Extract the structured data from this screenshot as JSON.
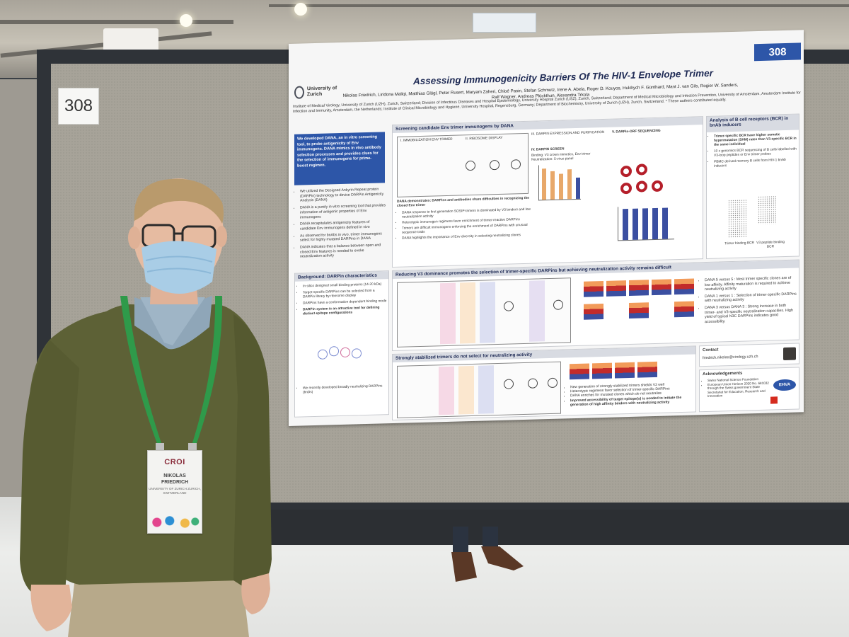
{
  "scene": {
    "board_number": "308",
    "colors": {
      "board": "#a7a399",
      "poster_accent": "#2d56a8",
      "sweater": "#5b5f35",
      "lanyard": "#2f9a4a"
    }
  },
  "poster": {
    "number": "308",
    "logo_text": "University of Zurich",
    "title": "Assessing Immunogenicity Barriers Of The HIV-1 Envelope Trimer",
    "authors": "Nikolas Friedrich, Liridona Maliqi, Matthias Glögl, Peter Rusert, Maryam Zaheri, Chloé Pasin, Stefan Schmutz, Irene A. Abela, Roger D. Kouyos, Huldrych F. Günthard, Mant J. van Gils, Rogier W. Sanders, Ralf Wagner, Andreas Plückthun, Alexandra Trkola",
    "affiliations": "Institute of Medical Virology, University of Zurich (UZH), Zurich, Switzerland; Division of Infectious Diseases and Hospital Epidemiology, University Hospital Zurich (USZ), Zurich, Switzerland; Department of Medical Microbiology and Infection Prevention, University of Amsterdam, Amsterdam Institute for Infection and Immunity, Amsterdam, the Netherlands; Institute of Clinical Microbiology and Hygiene, University Hospital, Regensburg, Germany; Department of Biochemistry, University of Zurich (UZH), Zurich, Switzerland. * These authors contributed equally.",
    "summary": "We developed DANA, an in vitro screening tool, to probe antigenicity of Env immunogens. DANA mimics in vivo antibody selection processes and provides clues for the selection of immunogens for prime-boost regimen.",
    "intro_bullets": [
      "We utilized the Designed Ankyrin Repeat protein (DARPin) technology to devise DARPin Antigenicity Analysis (DANA)",
      "DANA is a purely in-vitro screening tool that provides information of antigenic properties of Env immunogens",
      "DANA recapitulates antigenicity features of candidate Env immunogens defined in vivo",
      "As observed for bnAbs in vivo, trimer immunogens select for highly mutated DARPins in DANA",
      "DANA indicates that a balance between open and closed Env features is needed to evoke neutralization activity"
    ],
    "section_background": "Background: DARPin characteristics",
    "background_bullets": [
      "In silico designed small binding proteins (14-20 kDa)",
      "Target-specific DARPins can be selected from a DARPin library by ribosome display",
      "DARPins have a conformation dependent binding mode",
      "DARPin system is an attractive tool for defining distinct epitope configurations",
      "We recently developed broadly neutralizing DARPins (bnDs)"
    ],
    "section_screening": "Screening candidate Env trimer immunogens by DANA",
    "screening_labels": [
      "I. IMMOBILIZATION ENV TRIMER",
      "II. RIBOSOME DISPLAY",
      "III. DARPIN EXPRESSION AND PURIFICATION",
      "IV. DARPIN SCREEN",
      "V. DARPin-ORF SEQUENCING"
    ],
    "screening_subtitle": "Binding: V3 crown mimetics, Env trimer  Neutralization: 5-virus panel",
    "screening_conclusion": "DANA demonstrates: DARPins and antibodies share difficulties in recognizing the closed Env trimer",
    "screening_bullets": [
      "DANA response to first generation SOSIP-trimers is dominated by V3 binders and low neutralization activity",
      "Heterotypic immunogen regimens favor enrichment of trimer-reactive DARPins",
      "Trimers are difficult immunogens enforcing the enrichment of DARPins with unusual sequence traits",
      "DANA highlights the importance of Env diversity in selecting neutralizing clones"
    ],
    "section_reducing": "Reducing V3 dominance promotes the selection of trimer-specific DARPins but achieving neutralization activity remains difficult",
    "reducing_bullets": [
      "DANA 5 versus 5 : Most trimer specific clones are of low affinity. Affinity maturation is required to achieve neutralizing activity",
      "DANA 1 versus 1 : Selection of trimer-specific DARPins with neutralizing activity",
      "DANA 3 versus DANA 3 : Strong increase in both trimer- and V3-specific neutralization capacities. High yield of typical N3C DARPins indicates good accessibility."
    ],
    "section_stabilized": "Strongly stabilized trimers do not select for neutralizing activity",
    "stabilized_bullets": [
      "New generation of strongly stabilized trimers shields V3 well",
      "Heterotypic regimens favor selection of trimer-specific DARPins",
      "DANA enriches for mutated clones which do not neutralize",
      "Improved accessibility of target epitope(s) is needed to initiate the generation of high affinity binders with neutralizing activity"
    ],
    "section_bcr": "Analysis of B cell receptors (BCR) in bnAb inducers",
    "bcr_bullets": [
      "Trimer-specific BCR have higher somatic hypermutation (SHM) rates than V3-specific BCR in the same individual",
      "10 x genomics BCR sequencing of B cells labelled with V3-loop peptides or Env trimer probes",
      "PBMC derived memory B cells from HIV-1 bnAb inducers"
    ],
    "bcr_axis": [
      "Trimer binding BCR",
      "V3 peptide binding BCR"
    ],
    "contact_title": "Contact",
    "contact_email": "friedrich.nikolas@virology.uzh.ch",
    "ack_title": "Acknowledgements",
    "ack_bullets": [
      "Swiss National Science Foundation",
      "European Union Horizon 2020 No. 681032 through the Swiss government State Secretariat for Education, Research and Innovation",
      "EHVA"
    ]
  },
  "badge": {
    "logo": "CROI",
    "name_first": "NIKOLAS",
    "name_last": "FRIEDRICH",
    "affiliation": "UNIVERSITY OF ZURICH ZURICH, SWITZERLAND"
  }
}
